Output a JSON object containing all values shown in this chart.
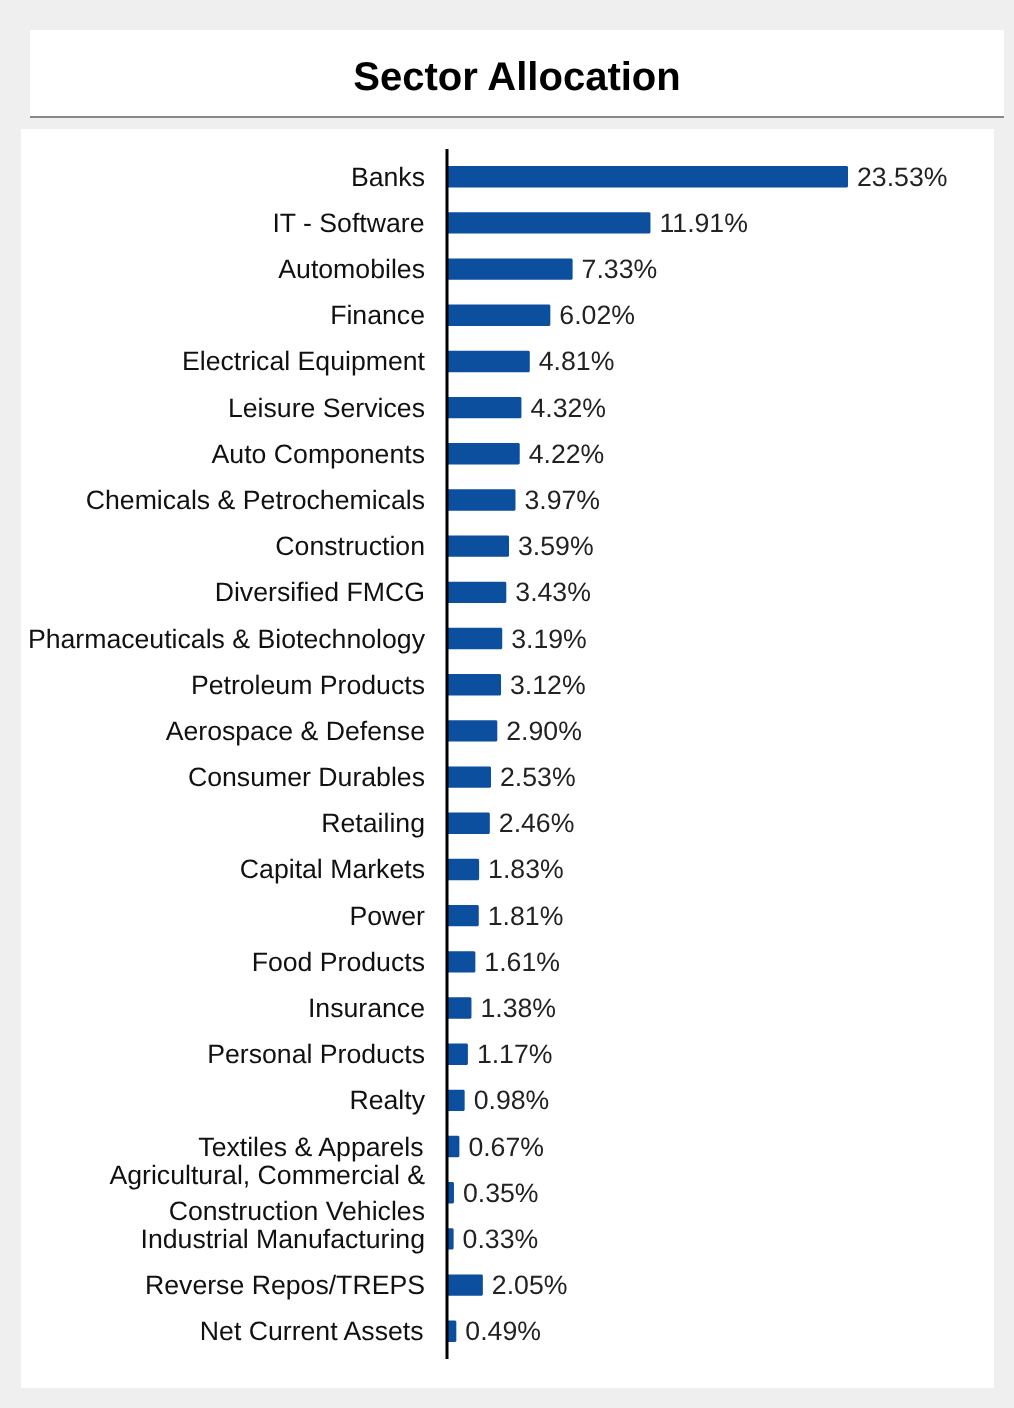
{
  "chart_data": {
    "type": "bar",
    "orientation": "horizontal",
    "title": "Sector Allocation",
    "tick_labels": "y",
    "grid": false,
    "categories": [
      "Banks",
      "IT - Software",
      "Automobiles",
      "Finance",
      "Electrical Equipment",
      "Leisure Services",
      "Auto Components",
      "Chemicals & Petrochemicals",
      "Construction",
      "Diversified FMCG",
      "Pharmaceuticals & Biotechnology",
      "Petroleum Products",
      "Aerospace & Defense",
      "Consumer Durables",
      "Retailing",
      "Capital Markets",
      "Power",
      "Food Products",
      "Insurance",
      "Personal Products",
      "Realty",
      "Textiles & Apparels",
      "Agricultural, Commercial & Construction Vehicles",
      "Industrial Manufacturing",
      "Reverse Repos/TREPS",
      "Net Current Assets"
    ],
    "values": [
      23.53,
      11.91,
      7.33,
      6.02,
      4.81,
      4.32,
      4.22,
      3.97,
      3.59,
      3.43,
      3.19,
      3.12,
      2.9,
      2.53,
      2.46,
      1.83,
      1.81,
      1.61,
      1.38,
      1.17,
      0.98,
      0.67,
      0.35,
      0.33,
      2.05,
      0.49
    ],
    "value_labels": [
      "23.53%",
      "11.91%",
      "7.33%",
      "6.02%",
      "4.81%",
      "4.32%",
      "4.22%",
      "3.97%",
      "3.59%",
      "3.43%",
      "3.19%",
      "3.12%",
      "2.90%",
      "2.53%",
      "2.46%",
      "1.83%",
      "1.81%",
      "1.61%",
      "1.38%",
      "1.17%",
      "0.98%",
      "0.67%",
      "0.35%",
      "0.33%",
      "2.05%",
      "0.49%"
    ],
    "color": "#0b4f9e"
  }
}
